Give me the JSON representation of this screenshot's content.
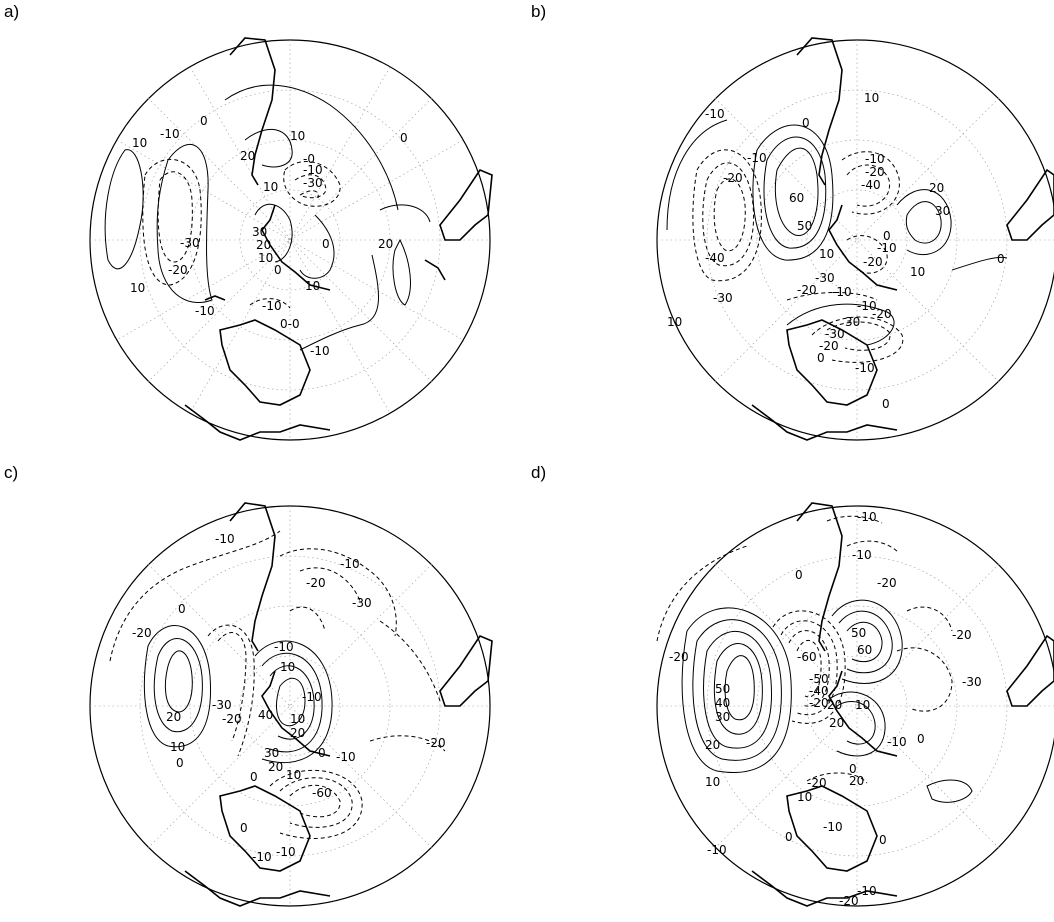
{
  "panels": [
    {
      "id": "a",
      "label": "a)",
      "contours": [
        {
          "text": "10"
        },
        {
          "text": "10"
        },
        {
          "text": "-10"
        },
        {
          "text": "0"
        },
        {
          "text": "-30"
        },
        {
          "text": "-20"
        },
        {
          "text": "10"
        },
        {
          "text": "-10"
        },
        {
          "text": "20"
        },
        {
          "text": "10"
        },
        {
          "text": "-0"
        },
        {
          "text": "-10"
        },
        {
          "text": "-30"
        },
        {
          "text": "30"
        },
        {
          "text": "20"
        },
        {
          "text": "10"
        },
        {
          "text": "0"
        },
        {
          "text": "10"
        },
        {
          "text": "0"
        },
        {
          "text": "20"
        },
        {
          "text": "0"
        },
        {
          "text": "-10"
        },
        {
          "text": "0-0"
        },
        {
          "text": "-10"
        }
      ]
    },
    {
      "id": "b",
      "label": "b)",
      "contours": [
        {
          "text": "-10"
        },
        {
          "text": "0"
        },
        {
          "text": "10"
        },
        {
          "text": "-10"
        },
        {
          "text": "-20"
        },
        {
          "text": "-40"
        },
        {
          "text": "-30"
        },
        {
          "text": "10"
        },
        {
          "text": "60"
        },
        {
          "text": "50"
        },
        {
          "text": "10"
        },
        {
          "text": "-10"
        },
        {
          "text": "-20"
        },
        {
          "text": "-40"
        },
        {
          "text": "20"
        },
        {
          "text": "30"
        },
        {
          "text": "0"
        },
        {
          "text": "-10"
        },
        {
          "text": "-20"
        },
        {
          "text": "-30"
        },
        {
          "text": "-20"
        },
        {
          "text": "-10"
        },
        {
          "text": "10"
        },
        {
          "text": "0"
        },
        {
          "text": "-10"
        },
        {
          "text": "-20"
        },
        {
          "text": "-30"
        },
        {
          "text": "30"
        },
        {
          "text": "-20"
        },
        {
          "text": "0"
        },
        {
          "text": "-10"
        },
        {
          "text": "0"
        }
      ]
    },
    {
      "id": "c",
      "label": "c)",
      "contours": [
        {
          "text": "-10"
        },
        {
          "text": "-10"
        },
        {
          "text": "-20"
        },
        {
          "text": "-30"
        },
        {
          "text": "-20"
        },
        {
          "text": "0"
        },
        {
          "text": "20"
        },
        {
          "text": "10"
        },
        {
          "text": "0"
        },
        {
          "text": "-30"
        },
        {
          "text": "-20"
        },
        {
          "text": "-10"
        },
        {
          "text": "10"
        },
        {
          "text": "40"
        },
        {
          "text": "-10"
        },
        {
          "text": "10"
        },
        {
          "text": "20"
        },
        {
          "text": "30"
        },
        {
          "text": "20"
        },
        {
          "text": "0"
        },
        {
          "text": "10"
        },
        {
          "text": "0"
        },
        {
          "text": "-10"
        },
        {
          "text": "-60"
        },
        {
          "text": "-20"
        },
        {
          "text": "0"
        },
        {
          "text": "-10"
        },
        {
          "text": "-10"
        }
      ]
    },
    {
      "id": "d",
      "label": "d)",
      "contours": [
        {
          "text": "-10"
        },
        {
          "text": "-10"
        },
        {
          "text": "0"
        },
        {
          "text": "-20"
        },
        {
          "text": "-20"
        },
        {
          "text": "-60"
        },
        {
          "text": "-50"
        },
        {
          "text": "-40"
        },
        {
          "text": "-20"
        },
        {
          "text": "50"
        },
        {
          "text": "60"
        },
        {
          "text": "-20"
        },
        {
          "text": "-30"
        },
        {
          "text": "50"
        },
        {
          "text": "40"
        },
        {
          "text": "30"
        },
        {
          "text": "20"
        },
        {
          "text": "10"
        },
        {
          "text": "20"
        },
        {
          "text": "10"
        },
        {
          "text": "20"
        },
        {
          "text": "-10"
        },
        {
          "text": "0"
        },
        {
          "text": "-20"
        },
        {
          "text": "0"
        },
        {
          "text": "20"
        },
        {
          "text": "10"
        },
        {
          "text": "-10"
        },
        {
          "text": "0"
        },
        {
          "text": "-10"
        },
        {
          "text": "0"
        },
        {
          "text": "-10"
        },
        {
          "text": "-20"
        }
      ]
    }
  ]
}
